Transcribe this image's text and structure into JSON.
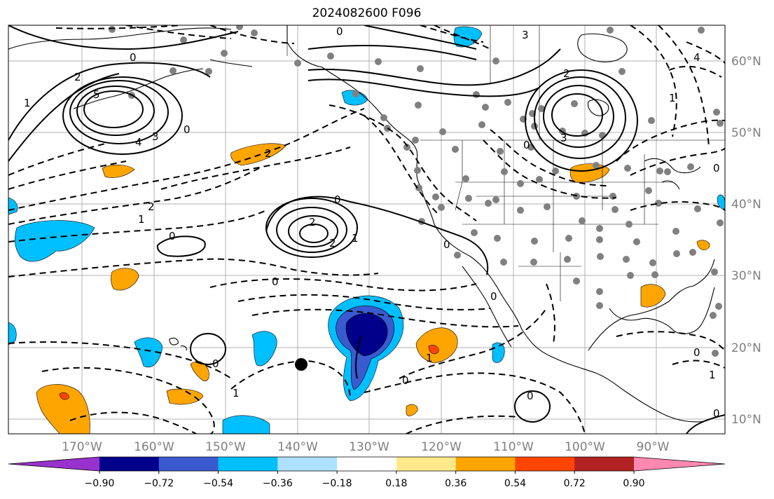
{
  "title": "2024082600 F096",
  "colors": {
    "land_border": "#000000",
    "grid": "#b0b0b0",
    "station_dot": "#808080",
    "contour": "#000000"
  },
  "lon_ticks": [
    "170°W",
    "160°W",
    "150°W",
    "140°W",
    "130°W",
    "120°W",
    "110°W",
    "100°W",
    "90°W"
  ],
  "lat_ticks": [
    "60°N",
    "50°N",
    "40°N",
    "30°N",
    "20°N",
    "10°N"
  ],
  "colorbar": {
    "colors": [
      "#9932cc",
      "#00008b",
      "#3a5bd0",
      "#00bfff",
      "#aee1ff",
      "#ffffff",
      "#ffe98a",
      "#ffa500",
      "#ff4500",
      "#b22222",
      "#ff88b0"
    ],
    "labels": [
      "−0.90",
      "−0.72",
      "−0.54",
      "−0.36",
      "−0.18",
      "0.18",
      "0.36",
      "0.54",
      "0.72",
      "0.90"
    ]
  },
  "contour_labels": [
    "0",
    "0",
    "5",
    "2",
    "1",
    "4",
    "3",
    "0",
    "2",
    "1",
    "2",
    "0",
    "0",
    "2",
    "2",
    "1",
    "0",
    "3",
    "2",
    "0",
    "3",
    "4",
    "1",
    "0",
    "0",
    "1",
    "0",
    "0",
    "0",
    "1",
    "1",
    "0",
    "0",
    "0"
  ],
  "map_features": {
    "marker": "black-dot"
  }
}
